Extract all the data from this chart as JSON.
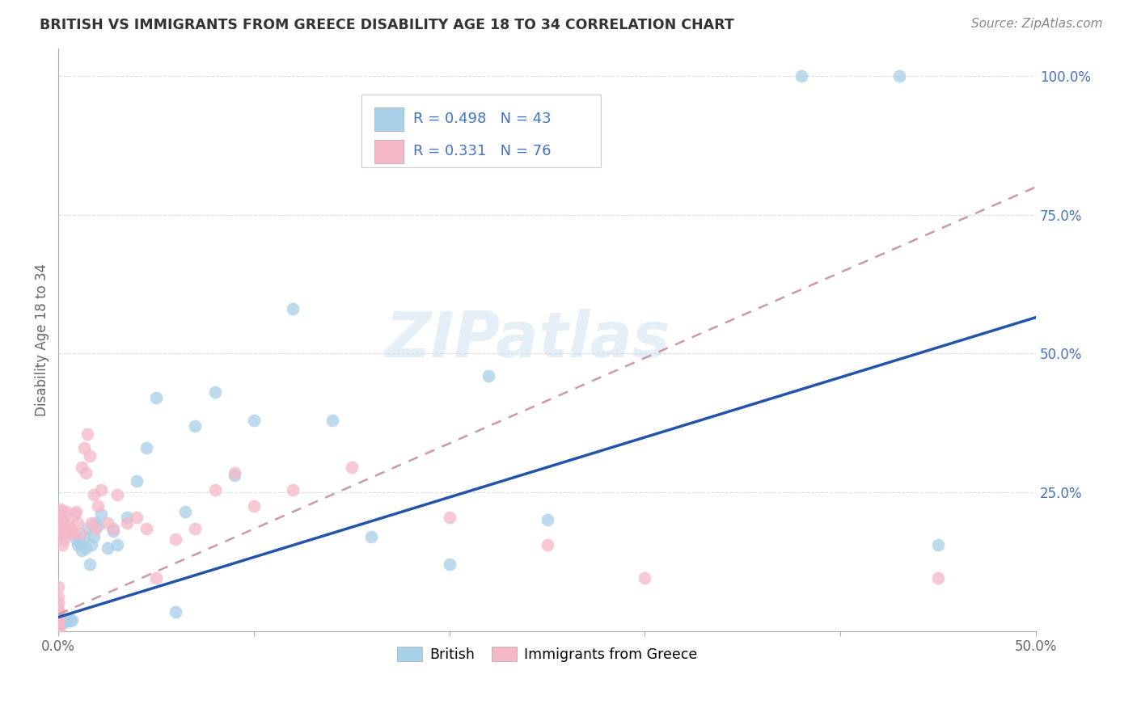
{
  "title": "BRITISH VS IMMIGRANTS FROM GREECE DISABILITY AGE 18 TO 34 CORRELATION CHART",
  "source": "Source: ZipAtlas.com",
  "ylabel": "Disability Age 18 to 34",
  "watermark": "ZIPatlas",
  "xlim": [
    0,
    0.5
  ],
  "ylim": [
    0,
    1.05
  ],
  "xtick_positions": [
    0.0,
    0.1,
    0.2,
    0.3,
    0.4,
    0.5
  ],
  "xtick_labels": [
    "0.0%",
    "",
    "",
    "",
    "",
    "50.0%"
  ],
  "ytick_positions": [
    0.0,
    0.25,
    0.5,
    0.75,
    1.0
  ],
  "ytick_labels": [
    "",
    "25.0%",
    "50.0%",
    "75.0%",
    "100.0%"
  ],
  "R_british": 0.498,
  "N_british": 43,
  "R_greece": 0.331,
  "N_greece": 76,
  "color_british": "#a8d0e8",
  "color_greece": "#f4b8c8",
  "line_color_british": "#2255aa",
  "line_color_greece": "#cc99aa",
  "british_x": [
    0.001,
    0.002,
    0.003,
    0.004,
    0.005,
    0.006,
    0.007,
    0.008,
    0.009,
    0.01,
    0.011,
    0.012,
    0.013,
    0.014,
    0.015,
    0.016,
    0.017,
    0.018,
    0.019,
    0.02,
    0.022,
    0.025,
    0.028,
    0.03,
    0.035,
    0.04,
    0.045,
    0.05,
    0.06,
    0.065,
    0.07,
    0.08,
    0.09,
    0.1,
    0.12,
    0.14,
    0.16,
    0.2,
    0.22,
    0.25,
    0.38,
    0.43,
    0.45
  ],
  "british_y": [
    0.015,
    0.02,
    0.015,
    0.018,
    0.022,
    0.018,
    0.02,
    0.175,
    0.165,
    0.155,
    0.16,
    0.145,
    0.17,
    0.15,
    0.185,
    0.12,
    0.155,
    0.17,
    0.195,
    0.19,
    0.21,
    0.15,
    0.18,
    0.155,
    0.205,
    0.27,
    0.33,
    0.42,
    0.035,
    0.215,
    0.37,
    0.43,
    0.28,
    0.38,
    0.58,
    0.38,
    0.17,
    0.12,
    0.46,
    0.2,
    1.0,
    1.0,
    0.155
  ],
  "greece_x": [
    0.0,
    0.0,
    0.0,
    0.0,
    0.0,
    0.0,
    0.0,
    0.0,
    0.0,
    0.0,
    0.0,
    0.0,
    0.0,
    0.0,
    0.0,
    0.0,
    0.0,
    0.0,
    0.0,
    0.0,
    0.0,
    0.0,
    0.0,
    0.0,
    0.0,
    0.0,
    0.0,
    0.0,
    0.0,
    0.0,
    0.001,
    0.001,
    0.001,
    0.001,
    0.002,
    0.002,
    0.002,
    0.003,
    0.003,
    0.004,
    0.004,
    0.005,
    0.006,
    0.007,
    0.008,
    0.009,
    0.01,
    0.011,
    0.012,
    0.013,
    0.014,
    0.015,
    0.016,
    0.017,
    0.018,
    0.019,
    0.02,
    0.022,
    0.025,
    0.028,
    0.03,
    0.035,
    0.04,
    0.045,
    0.05,
    0.06,
    0.07,
    0.08,
    0.09,
    0.1,
    0.12,
    0.15,
    0.2,
    0.25,
    0.3,
    0.45
  ],
  "greece_y": [
    0.0,
    0.0,
    0.0,
    0.0,
    0.0,
    0.0,
    0.0,
    0.0,
    0.0,
    0.0,
    0.0,
    0.0,
    0.0,
    0.0,
    0.0,
    0.05,
    0.08,
    0.06,
    0.04,
    0.035,
    0.025,
    0.02,
    0.015,
    0.01,
    0.005,
    0.003,
    0.002,
    0.001,
    0.0,
    0.0,
    0.18,
    0.22,
    0.195,
    0.175,
    0.2,
    0.215,
    0.155,
    0.165,
    0.195,
    0.175,
    0.215,
    0.195,
    0.185,
    0.175,
    0.21,
    0.215,
    0.195,
    0.175,
    0.295,
    0.33,
    0.285,
    0.355,
    0.315,
    0.195,
    0.245,
    0.185,
    0.225,
    0.255,
    0.195,
    0.185,
    0.245,
    0.195,
    0.205,
    0.185,
    0.095,
    0.165,
    0.185,
    0.255,
    0.285,
    0.225,
    0.255,
    0.295,
    0.205,
    0.155,
    0.095,
    0.095
  ],
  "background_color": "#ffffff",
  "grid_color": "#dddddd",
  "brit_line_x0": 0.0,
  "brit_line_y0": 0.025,
  "brit_line_x1": 0.5,
  "brit_line_y1": 0.565,
  "greece_line_x0": 0.0,
  "greece_line_y0": 0.03,
  "greece_line_x1": 0.5,
  "greece_line_y1": 0.8
}
